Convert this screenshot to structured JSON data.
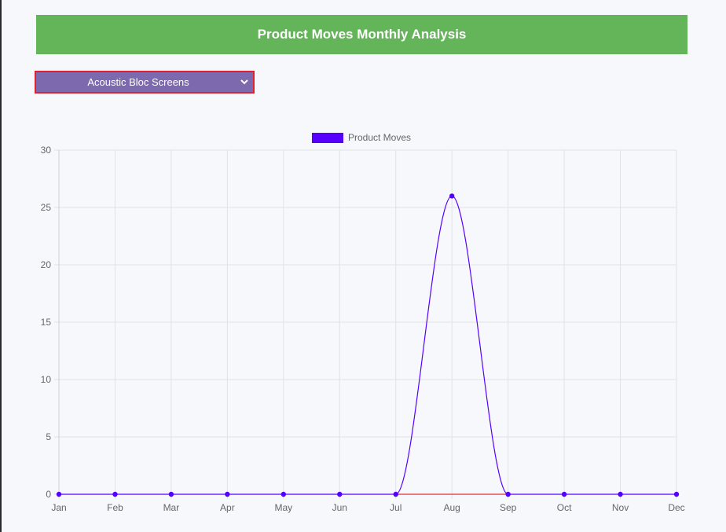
{
  "header": {
    "title": "Product Moves Monthly Analysis"
  },
  "product_select": {
    "selected": "Acoustic Bloc Screens",
    "options": [
      "Acoustic Bloc Screens"
    ]
  },
  "colors": {
    "header_bg": "#64b45a",
    "select_bg": "#7d6aae",
    "select_border": "#e0202a",
    "series": "#5500ff",
    "baseline": "#cc0000"
  },
  "icons": {
    "select_arrow": "chevron-down-icon"
  },
  "chart_data": {
    "type": "line",
    "categories": [
      "Jan",
      "Feb",
      "Mar",
      "Apr",
      "May",
      "Jun",
      "Jul",
      "Aug",
      "Sep",
      "Oct",
      "Nov",
      "Dec"
    ],
    "series": [
      {
        "name": "Product Moves",
        "values": [
          0,
          0,
          0,
          0,
          0,
          0,
          0,
          26,
          0,
          0,
          0,
          0
        ],
        "color": "#5500ff"
      }
    ],
    "ylim": [
      0,
      30
    ],
    "yticks": [
      0,
      5,
      10,
      15,
      20,
      25,
      30
    ],
    "grid": true,
    "legend": "top-center",
    "smooth": true
  }
}
